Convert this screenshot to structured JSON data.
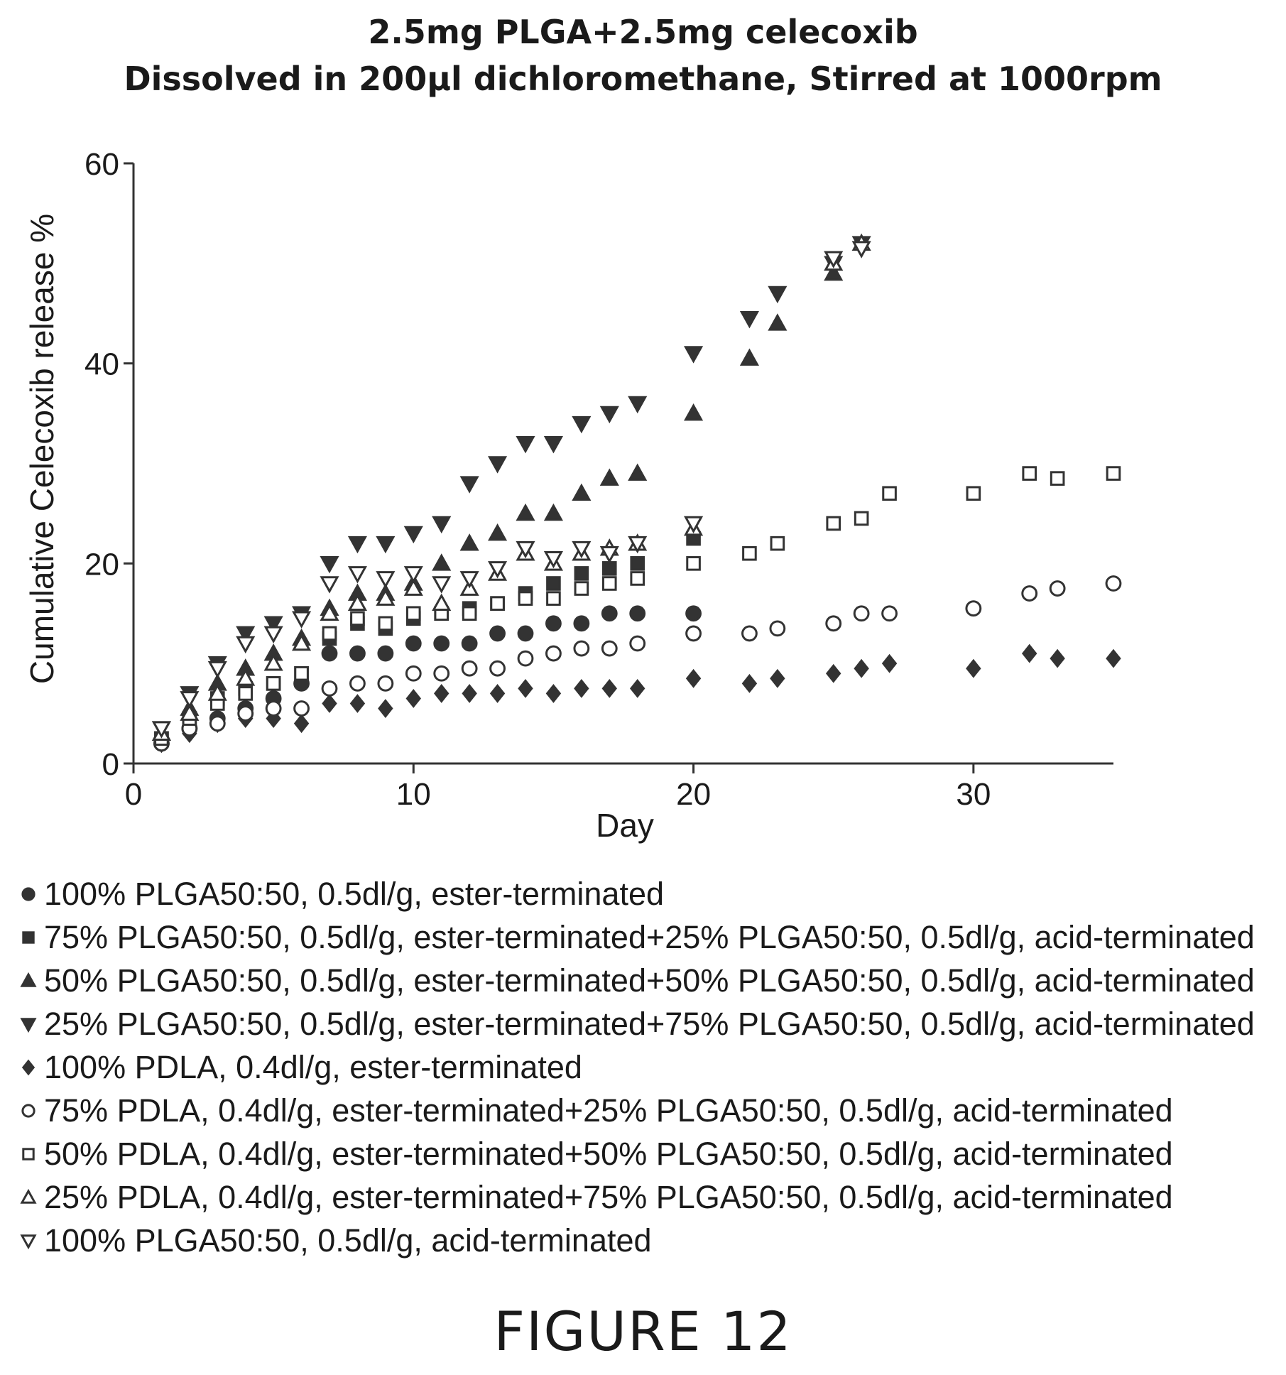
{
  "chart_data": {
    "type": "scatter",
    "title": "2.5mg PLGA+2.5mg celecoxib",
    "subtitle": "Dissolved in 200µl dichloromethane, Stirred at 1000rpm",
    "xlabel": "Day",
    "ylabel": "Cumulative Celecoxib release %",
    "xlim": [
      0,
      35
    ],
    "ylim": [
      0,
      60
    ],
    "xticks": [
      0,
      10,
      20,
      30
    ],
    "yticks": [
      0,
      20,
      40,
      60
    ],
    "grid": false,
    "legend_position": "bottom",
    "color": "#333333",
    "series": [
      {
        "name": "100% PLGA50:50, 0.5dl/g, ester-terminated",
        "marker": "circle-filled",
        "x": [
          1,
          2,
          3,
          4,
          5,
          6,
          7,
          8,
          9,
          10,
          11,
          12,
          13,
          14,
          15,
          16,
          17,
          18,
          20
        ],
        "y": [
          2,
          3.5,
          4.5,
          5.5,
          6.5,
          8,
          11,
          11,
          11,
          12,
          12,
          12,
          13,
          13,
          14,
          14,
          15,
          15,
          15
        ]
      },
      {
        "name": "75% PLGA50:50, 0.5dl/g, ester-terminated+25% PLGA50:50, 0.5dl/g, acid-terminated",
        "marker": "square-filled",
        "x": [
          1,
          2,
          3,
          4,
          5,
          6,
          7,
          8,
          9,
          10,
          11,
          12,
          13,
          14,
          15,
          16,
          17,
          18,
          20
        ],
        "y": [
          2.5,
          4.5,
          6.5,
          7.5,
          8,
          9,
          12.5,
          14,
          13.5,
          14.5,
          15,
          15.5,
          16,
          17,
          18,
          19,
          19.5,
          20,
          22.5
        ]
      },
      {
        "name": "50% PLGA50:50, 0.5dl/g, ester-terminated+50% PLGA50:50, 0.5dl/g, acid-terminated",
        "marker": "triangle-up-filled",
        "x": [
          1,
          2,
          3,
          4,
          5,
          6,
          7,
          8,
          9,
          10,
          11,
          12,
          13,
          14,
          15,
          16,
          17,
          18,
          20,
          22,
          23,
          25
        ],
        "y": [
          3,
          5.5,
          8,
          9.5,
          11,
          12.5,
          15.5,
          17,
          17,
          18,
          20,
          22,
          23,
          25,
          25,
          27,
          28.5,
          29,
          35,
          40.5,
          44,
          49
        ]
      },
      {
        "name": "25% PLGA50:50, 0.5dl/g, ester-terminated+75% PLGA50:50, 0.5dl/g, acid-terminated",
        "marker": "triangle-down-filled",
        "x": [
          1,
          2,
          3,
          4,
          5,
          6,
          7,
          8,
          9,
          10,
          11,
          12,
          13,
          14,
          15,
          16,
          17,
          18,
          20,
          22,
          23,
          25,
          26
        ],
        "y": [
          3.5,
          7,
          10,
          13,
          14,
          15,
          20,
          22,
          22,
          23,
          24,
          28,
          30,
          32,
          32,
          34,
          35,
          36,
          41,
          44.5,
          47,
          50,
          52
        ]
      },
      {
        "name": "100% PDLA, 0.4dl/g, ester-terminated",
        "marker": "diamond-filled",
        "x": [
          1,
          2,
          3,
          4,
          5,
          6,
          7,
          8,
          9,
          10,
          11,
          12,
          13,
          14,
          15,
          16,
          17,
          18,
          20,
          22,
          23,
          25,
          26,
          27,
          30,
          32,
          33,
          35
        ],
        "y": [
          2,
          3,
          4,
          4.5,
          4.5,
          4,
          6,
          6,
          5.5,
          6.5,
          7,
          7,
          7,
          7.5,
          7,
          7.5,
          7.5,
          7.5,
          8.5,
          8,
          8.5,
          9,
          9.5,
          10,
          9.5,
          11,
          10.5,
          10.5
        ]
      },
      {
        "name": "75% PDLA, 0.4dl/g, ester-terminated+25% PLGA50:50, 0.5dl/g, acid-terminated",
        "marker": "circle-open",
        "x": [
          1,
          2,
          3,
          4,
          5,
          6,
          7,
          8,
          9,
          10,
          11,
          12,
          13,
          14,
          15,
          16,
          17,
          18,
          20,
          22,
          23,
          25,
          26,
          27,
          30,
          32,
          33,
          35
        ],
        "y": [
          2,
          3.5,
          4,
          5,
          5.5,
          5.5,
          7.5,
          8,
          8,
          9,
          9,
          9.5,
          9.5,
          10.5,
          11,
          11.5,
          11.5,
          12,
          13,
          13,
          13.5,
          14,
          15,
          15,
          15.5,
          17,
          17.5,
          18
        ]
      },
      {
        "name": "50% PDLA, 0.4dl/g, ester-terminated+50% PLGA50:50, 0.5dl/g, acid-terminated",
        "marker": "square-open",
        "x": [
          1,
          2,
          3,
          4,
          5,
          6,
          7,
          8,
          9,
          10,
          11,
          12,
          13,
          14,
          15,
          16,
          17,
          18,
          20,
          22,
          23,
          25,
          26,
          27,
          30,
          32,
          33,
          35
        ],
        "y": [
          2.5,
          4.5,
          6,
          7,
          8,
          9,
          13,
          14.5,
          14,
          15,
          15,
          15,
          16,
          16.5,
          16.5,
          17.5,
          18,
          18.5,
          20,
          21,
          22,
          24,
          24.5,
          27,
          27,
          29,
          28.5,
          29
        ]
      },
      {
        "name": "25% PDLA, 0.4dl/g, ester-terminated+75% PLGA50:50, 0.5dl/g, acid-terminated",
        "marker": "triangle-up-open",
        "x": [
          1,
          2,
          3,
          4,
          5,
          6,
          7,
          8,
          9,
          10,
          11,
          12,
          13,
          14,
          15,
          16,
          17,
          18,
          20,
          25,
          26
        ],
        "y": [
          3,
          5,
          7,
          8.5,
          10,
          12,
          15,
          16,
          16.5,
          17.5,
          16,
          17.5,
          19,
          21,
          20,
          21,
          21.5,
          22,
          23.5,
          50,
          52
        ]
      },
      {
        "name": "100% PLGA50:50, 0.5dl/g, acid-terminated",
        "marker": "triangle-down-open",
        "x": [
          1,
          2,
          3,
          4,
          5,
          6,
          7,
          8,
          9,
          10,
          11,
          12,
          13,
          14,
          15,
          16,
          17,
          18,
          20,
          25,
          26
        ],
        "y": [
          3.5,
          6.5,
          9.5,
          12,
          13,
          14.5,
          18,
          19,
          18.5,
          19,
          18,
          18.5,
          19.5,
          21.5,
          20.5,
          21.5,
          21,
          22,
          24,
          50.5,
          51.5
        ]
      }
    ]
  },
  "figure_caption": "FIGURE 12"
}
